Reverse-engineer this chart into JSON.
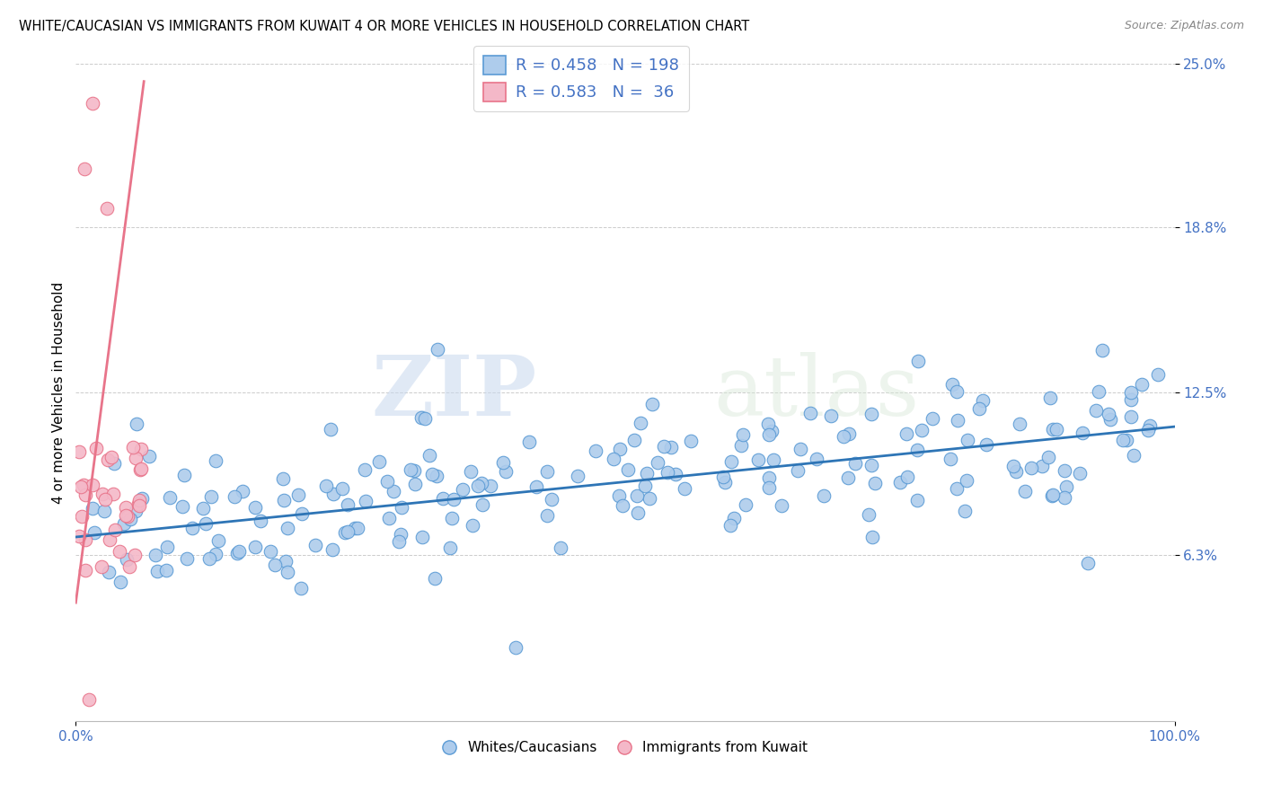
{
  "title": "WHITE/CAUCASIAN VS IMMIGRANTS FROM KUWAIT 4 OR MORE VEHICLES IN HOUSEHOLD CORRELATION CHART",
  "source": "Source: ZipAtlas.com",
  "ylabel": "4 or more Vehicles in Household",
  "xlim": [
    0,
    100
  ],
  "ylim": [
    0,
    25
  ],
  "ytick_labels": [
    "6.3%",
    "12.5%",
    "18.8%",
    "25.0%"
  ],
  "ytick_values": [
    6.3,
    12.5,
    18.8,
    25.0
  ],
  "xtick_labels": [
    "0.0%",
    "100.0%"
  ],
  "xtick_values": [
    0,
    100
  ],
  "blue_R": 0.458,
  "blue_N": 198,
  "pink_R": 0.583,
  "pink_N": 36,
  "blue_scatter_color": "#aeccec",
  "blue_edge_color": "#5b9bd5",
  "blue_line_color": "#2e75b6",
  "pink_scatter_color": "#f4b8c8",
  "pink_edge_color": "#e8748a",
  "pink_line_color": "#e8748a",
  "legend_blue_face": "#aeccec",
  "legend_blue_edge": "#5b9bd5",
  "legend_pink_face": "#f4b8c8",
  "legend_pink_edge": "#e8748a",
  "watermark_zip": "ZIP",
  "watermark_atlas": "atlas",
  "title_fontsize": 10.5,
  "source_fontsize": 9,
  "seed": 42,
  "blue_line_intercept": 7.0,
  "blue_line_slope": 0.042,
  "pink_line_intercept": 4.5,
  "pink_line_slope": 3.2,
  "pink_line_xmax": 6.2
}
